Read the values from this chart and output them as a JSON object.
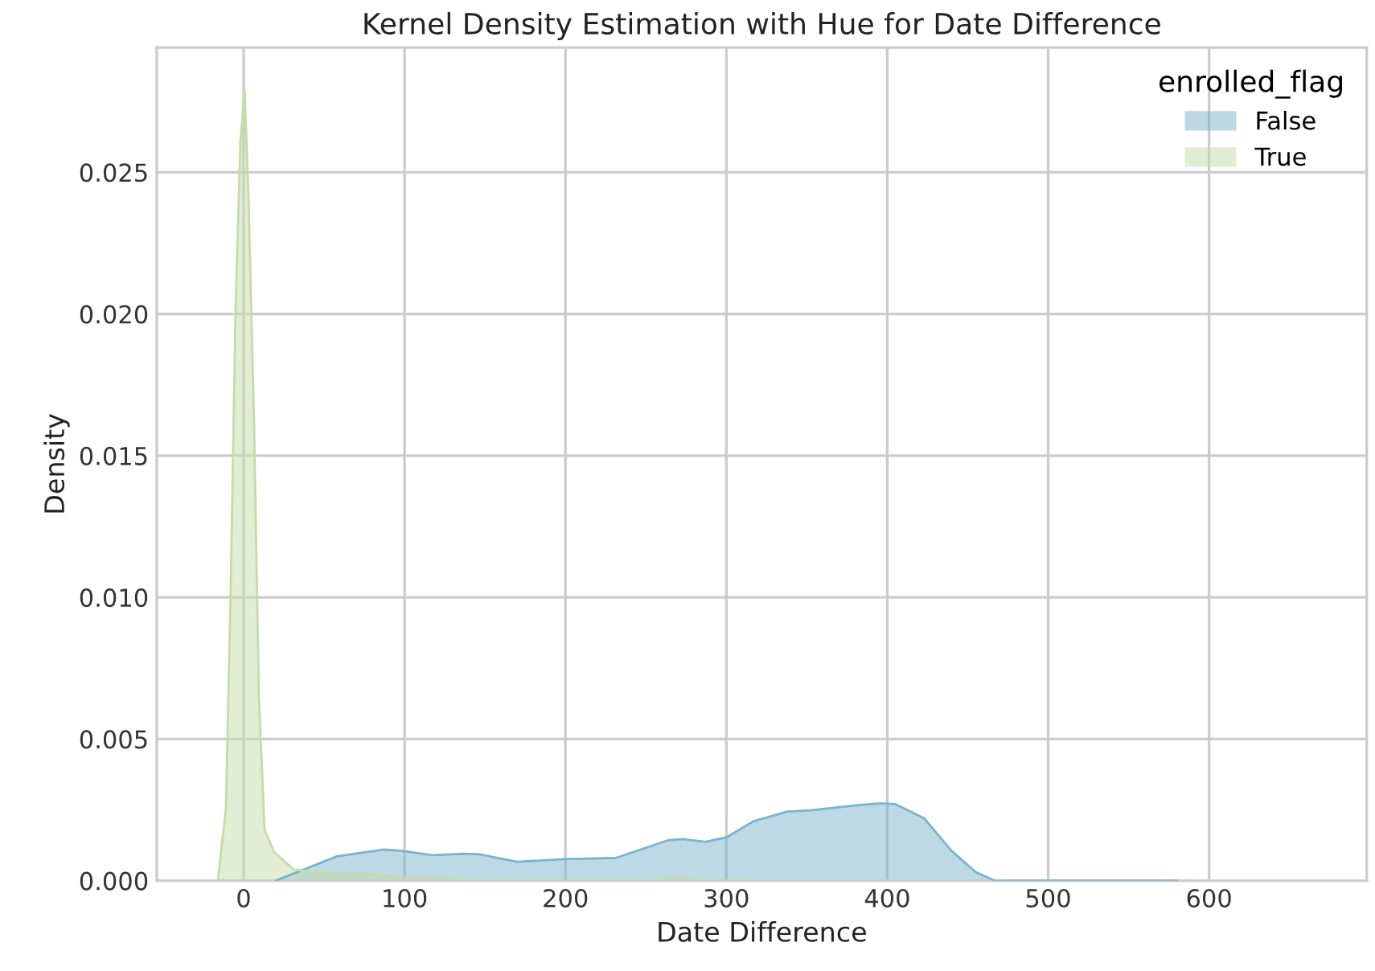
{
  "chart_data": {
    "type": "area",
    "title": "Kernel Density Estimation with Hue for Date Difference",
    "xlabel": "Date Difference",
    "ylabel": "Density",
    "legend_title": "enrolled_flag",
    "legend": "top right",
    "grid": true,
    "xlim": [
      -54,
      698
    ],
    "ylim": [
      0,
      0.0294
    ],
    "xticks": [
      0,
      100,
      200,
      300,
      400,
      500,
      600
    ],
    "yticks": [
      {
        "value": 0,
        "label": "0.000"
      },
      {
        "value": 0.005,
        "label": "0.005"
      },
      {
        "value": 0.01,
        "label": "0.010"
      },
      {
        "value": 0.015,
        "label": "0.015"
      },
      {
        "value": 0.02,
        "label": "0.020"
      },
      {
        "value": 0.025,
        "label": "0.025"
      }
    ],
    "series": [
      {
        "name": "False",
        "color": "#7bb3cd",
        "x": [
          20,
          58,
          87,
          99,
          117,
          137,
          146,
          170,
          199,
          231,
          264,
          273,
          287,
          300,
          317,
          338,
          352,
          382,
          396,
          405,
          423,
          440,
          455,
          467,
          485,
          580
        ],
        "values": [
          0,
          0.00086,
          0.0011,
          0.00105,
          0.0009,
          0.00095,
          0.00094,
          0.00067,
          0.00076,
          0.0008,
          0.00143,
          0.00147,
          0.00137,
          0.00153,
          0.0021,
          0.00244,
          0.00248,
          0.00267,
          0.00273,
          0.0027,
          0.0022,
          0.00105,
          0.0003,
          0,
          0,
          0
        ]
      },
      {
        "name": "True",
        "color": "#c5dba8",
        "x": [
          -16,
          -11,
          -8,
          -5,
          -2,
          0.6,
          3,
          6.4,
          9.5,
          13,
          19,
          31,
          53,
          83,
          100,
          150,
          200,
          255,
          270,
          285,
          320
        ],
        "values": [
          0,
          0.00255,
          0.0104,
          0.0202,
          0.0261,
          0.0279,
          0.0242,
          0.0163,
          0.0065,
          0.0018,
          0.001,
          0.0004,
          0.00024,
          0.0002,
          0.0001,
          0,
          0,
          0,
          0.0001,
          0,
          0
        ]
      }
    ]
  }
}
